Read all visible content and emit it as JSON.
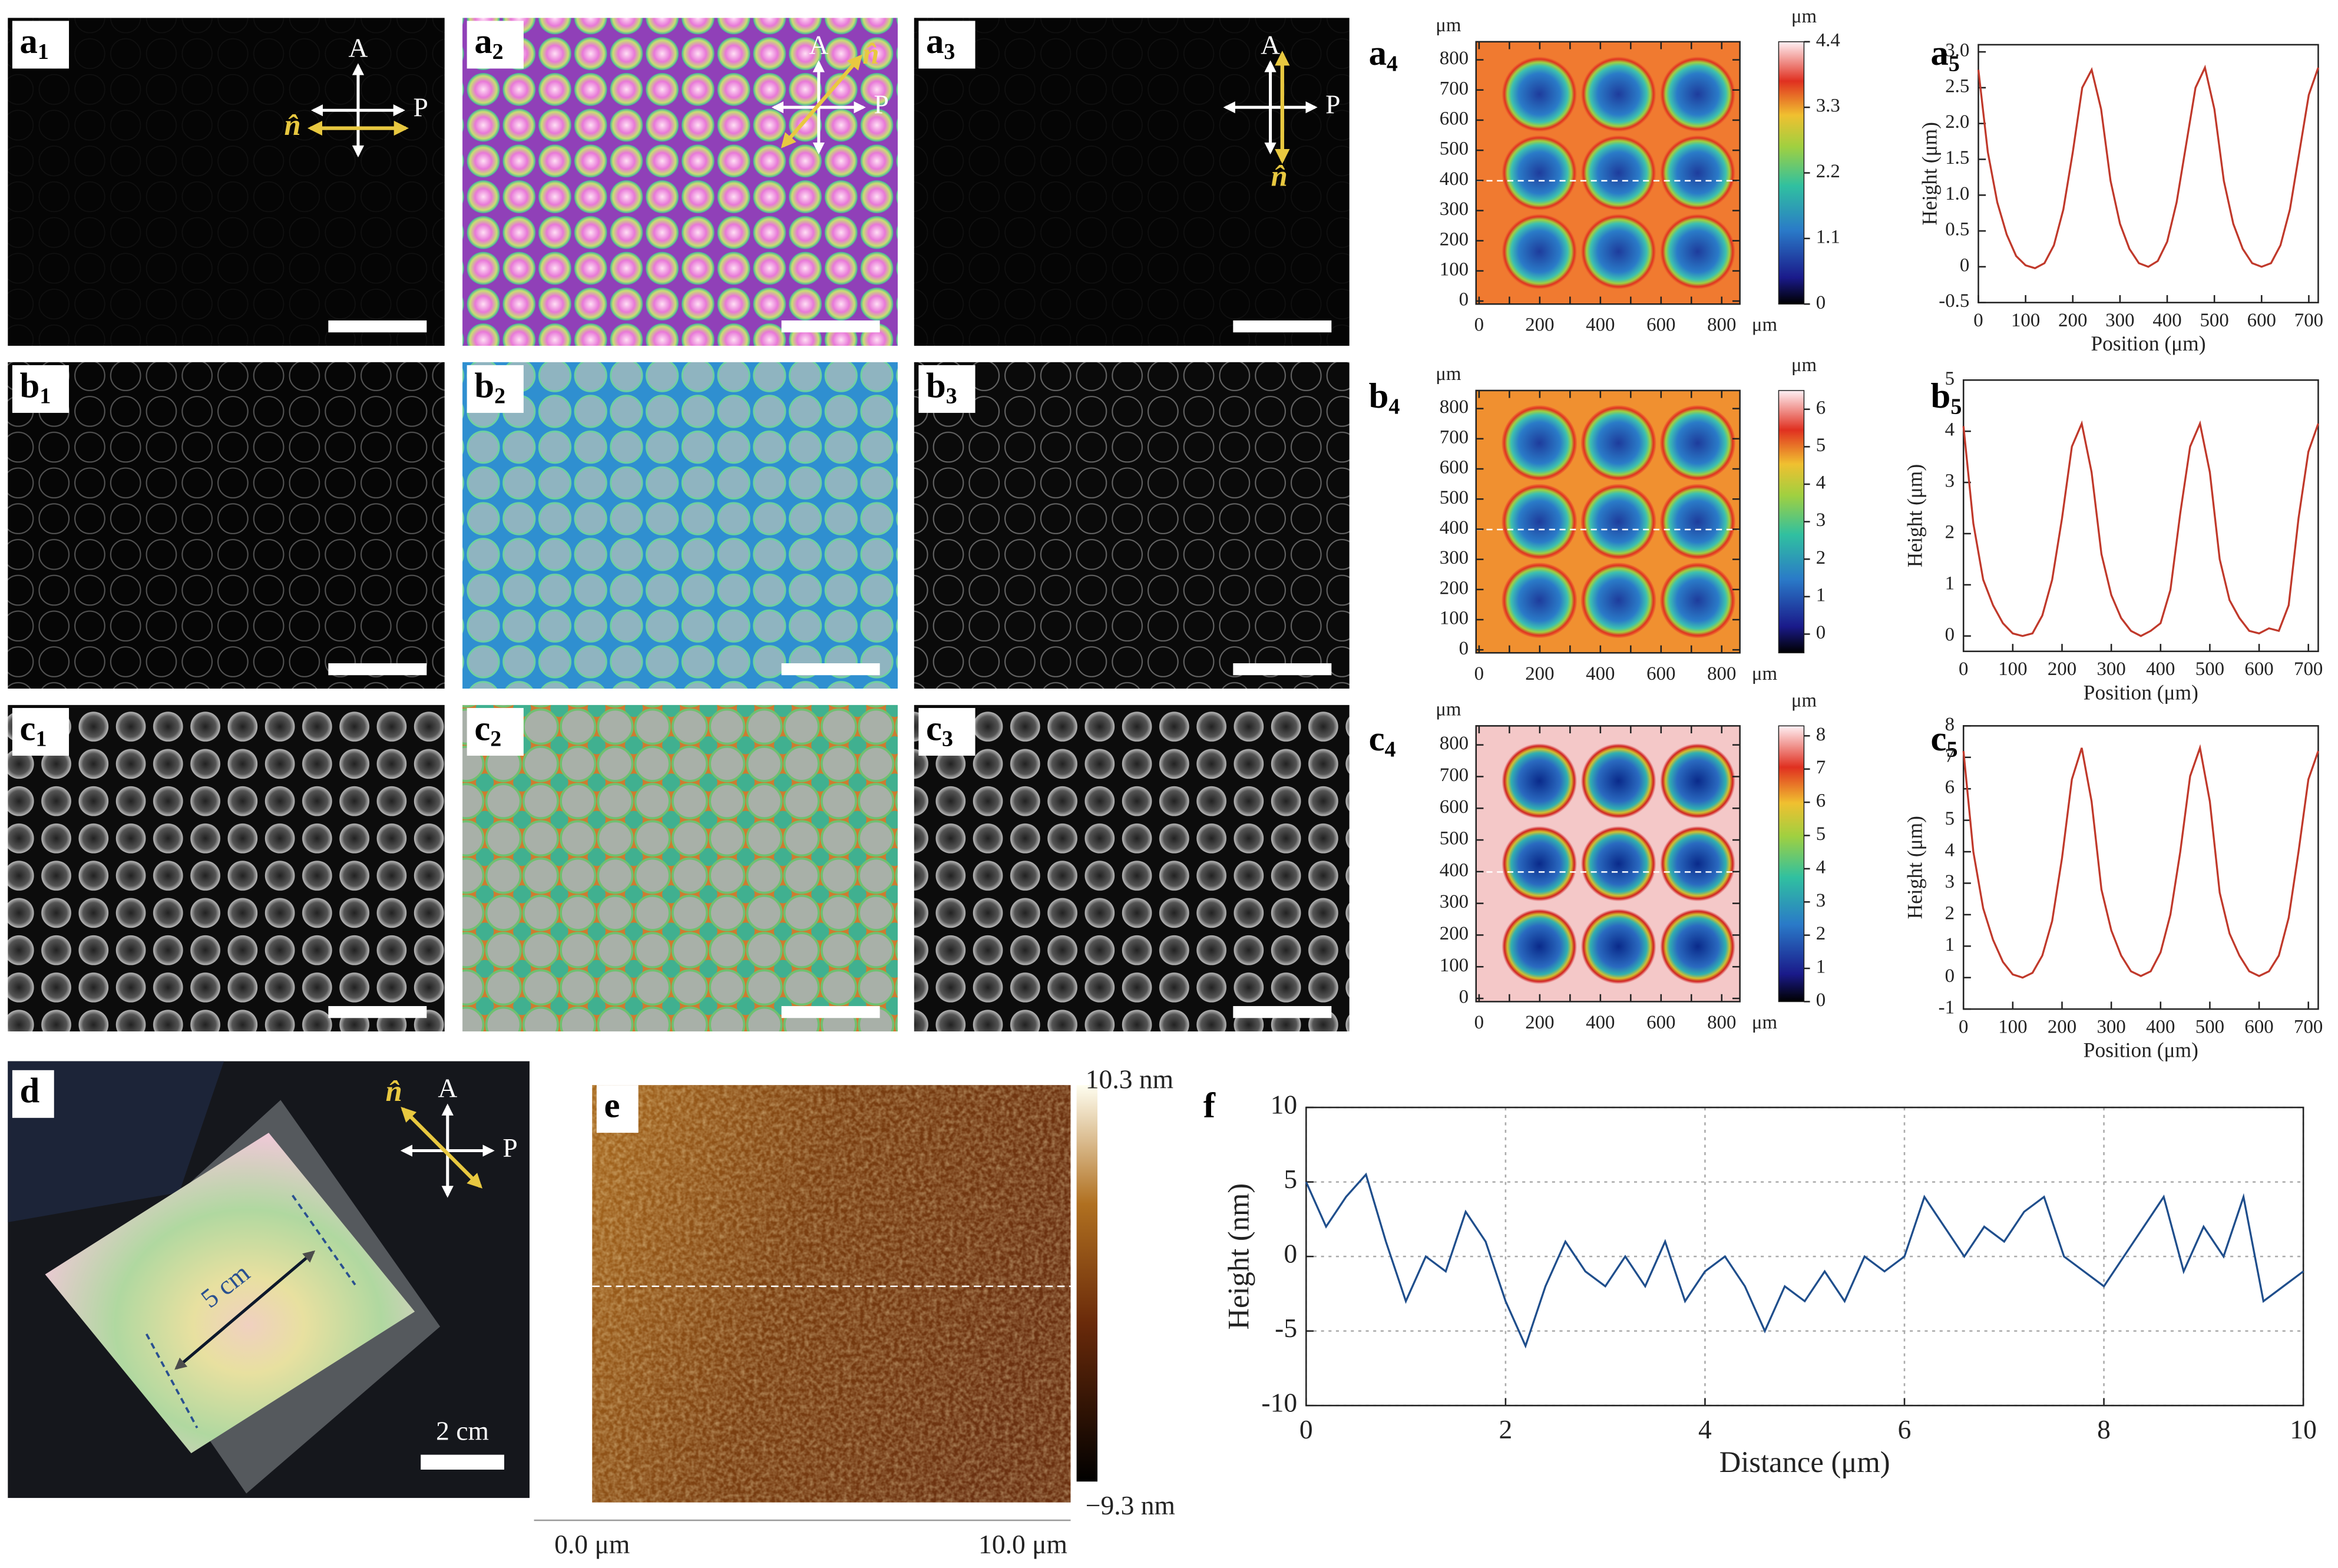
{
  "labels": [
    {
      "letter": "a",
      "sub": "1"
    },
    {
      "letter": "a",
      "sub": "2"
    },
    {
      "letter": "a",
      "sub": "3"
    },
    {
      "letter": "a",
      "sub": "4"
    },
    {
      "letter": "a",
      "sub": "5"
    },
    {
      "letter": "b",
      "sub": "1"
    },
    {
      "letter": "b",
      "sub": "2"
    },
    {
      "letter": "b",
      "sub": "3"
    },
    {
      "letter": "b",
      "sub": "4"
    },
    {
      "letter": "b",
      "sub": "5"
    },
    {
      "letter": "c",
      "sub": "1"
    },
    {
      "letter": "c",
      "sub": "2"
    },
    {
      "letter": "c",
      "sub": "3"
    },
    {
      "letter": "c",
      "sub": "4"
    },
    {
      "letter": "c",
      "sub": "5"
    },
    {
      "letter": "d"
    },
    {
      "letter": "e"
    },
    {
      "letter": "f"
    }
  ],
  "polarizer": {
    "analyzer": "A",
    "polarizer": "P",
    "director": "n̂"
  },
  "maps": [
    {
      "unit": "μm",
      "xlim": [
        -10,
        860
      ],
      "ylim": [
        -10,
        860
      ],
      "xticks": [
        0,
        100,
        200,
        300,
        400,
        500,
        600,
        700,
        800
      ],
      "yticks": [
        0,
        100,
        200,
        300,
        400,
        500,
        600,
        700,
        800
      ],
      "colorbar_lim": [
        0,
        4.4
      ],
      "colorbar_ticks": [
        0,
        1.1,
        2.2,
        3.3,
        4.4
      ]
    },
    {
      "unit": "μm",
      "xlim": [
        -10,
        860
      ],
      "ylim": [
        -10,
        860
      ],
      "xticks": [
        0,
        100,
        200,
        300,
        400,
        500,
        600,
        700,
        800
      ],
      "yticks": [
        0,
        100,
        200,
        300,
        400,
        500,
        600,
        700,
        800
      ],
      "colorbar_lim": [
        -0.5,
        6.5
      ],
      "colorbar_ticks": [
        0,
        1,
        2,
        3,
        4,
        5,
        6
      ]
    },
    {
      "unit": "μm",
      "xlim": [
        -10,
        860
      ],
      "ylim": [
        -10,
        860
      ],
      "xticks": [
        0,
        100,
        200,
        300,
        400,
        500,
        600,
        700,
        800
      ],
      "yticks": [
        0,
        100,
        200,
        300,
        400,
        500,
        600,
        700,
        800
      ],
      "colorbar_lim": [
        0,
        8.3
      ],
      "colorbar_ticks": [
        0,
        1,
        2,
        3,
        4,
        5,
        6,
        7,
        8
      ]
    }
  ],
  "photo": {
    "length": "5 cm",
    "scale": "2 cm"
  },
  "afm": {
    "max": "10.3 nm",
    "min": "−9.3 nm",
    "x_start": "0.0 μm",
    "x_end": "10.0 μm"
  },
  "chart_data": [
    {
      "type": "line",
      "xlabel": "Position (μm)",
      "ylabel": "Height (μm)",
      "xlim": [
        0,
        720
      ],
      "xticks": [
        0,
        100,
        200,
        300,
        400,
        500,
        600,
        700
      ],
      "ylim": [
        -0.5,
        3.1
      ],
      "yticks": [
        -0.5,
        0,
        0.5,
        {
          "value": 1,
          "label": "1.0"
        },
        1.5,
        {
          "value": 2,
          "label": "2.0"
        },
        2.5,
        {
          "value": 3,
          "label": "3.0"
        }
      ],
      "x": [
        0,
        20,
        40,
        60,
        80,
        100,
        120,
        140,
        160,
        180,
        200,
        220,
        240,
        260,
        280,
        300,
        320,
        340,
        360,
        380,
        400,
        420,
        440,
        460,
        480,
        500,
        520,
        540,
        560,
        580,
        600,
        620,
        640,
        660,
        680,
        700,
        720
      ],
      "series": [
        {
          "color": "#c0392b",
          "values": [
            2.75,
            1.6,
            0.9,
            0.45,
            0.15,
            0.02,
            -0.02,
            0.05,
            0.3,
            0.8,
            1.6,
            2.5,
            2.75,
            2.2,
            1.2,
            0.6,
            0.25,
            0.05,
            0,
            0.08,
            0.35,
            0.9,
            1.7,
            2.5,
            2.78,
            2.2,
            1.2,
            0.6,
            0.25,
            0.05,
            0,
            0.05,
            0.3,
            0.8,
            1.6,
            2.4,
            2.78
          ]
        }
      ]
    },
    {
      "type": "line",
      "xlabel": "Position (μm)",
      "ylabel": "Height (μm)",
      "xlim": [
        0,
        720
      ],
      "xticks": [
        0,
        100,
        200,
        300,
        400,
        500,
        600,
        700
      ],
      "ylim": [
        -0.3,
        5
      ],
      "yticks": [
        0,
        1,
        2,
        3,
        4,
        5
      ],
      "x": [
        0,
        20,
        40,
        60,
        80,
        100,
        120,
        140,
        160,
        180,
        200,
        220,
        240,
        260,
        280,
        300,
        320,
        340,
        360,
        380,
        400,
        420,
        440,
        460,
        480,
        500,
        520,
        540,
        560,
        580,
        600,
        620,
        640,
        660,
        680,
        700,
        720
      ],
      "series": [
        {
          "color": "#c0392b",
          "values": [
            4.1,
            2.2,
            1.1,
            0.6,
            0.25,
            0.05,
            0,
            0.05,
            0.4,
            1.1,
            2.3,
            3.7,
            4.15,
            3.2,
            1.6,
            0.8,
            0.35,
            0.1,
            0,
            0.1,
            0.25,
            0.9,
            2.4,
            3.7,
            4.15,
            3.2,
            1.5,
            0.7,
            0.35,
            0.1,
            0.05,
            0.15,
            0.1,
            0.6,
            2.3,
            3.6,
            4.15
          ]
        }
      ]
    },
    {
      "type": "line",
      "xlabel": "Position (μm)",
      "ylabel": "Height (μm)",
      "xlim": [
        0,
        720
      ],
      "xticks": [
        0,
        100,
        200,
        300,
        400,
        500,
        600,
        700
      ],
      "ylim": [
        -1,
        8
      ],
      "yticks": [
        -1,
        0,
        1,
        2,
        3,
        4,
        5,
        6,
        7,
        8
      ],
      "x": [
        0,
        20,
        40,
        60,
        80,
        100,
        120,
        140,
        160,
        180,
        200,
        220,
        240,
        260,
        280,
        300,
        320,
        340,
        360,
        380,
        400,
        420,
        440,
        460,
        480,
        500,
        520,
        540,
        560,
        580,
        600,
        620,
        640,
        660,
        680,
        700,
        720
      ],
      "series": [
        {
          "color": "#c0392b",
          "values": [
            7.2,
            4,
            2.2,
            1.2,
            0.5,
            0.1,
            0,
            0.15,
            0.7,
            1.8,
            3.8,
            6.3,
            7.3,
            5.6,
            2.8,
            1.5,
            0.7,
            0.2,
            0.05,
            0.2,
            0.8,
            2,
            4,
            6.4,
            7.3,
            5.6,
            2.7,
            1.4,
            0.7,
            0.2,
            0.05,
            0.2,
            0.7,
            1.9,
            4,
            6.3,
            7.2
          ]
        }
      ]
    },
    {
      "type": "line",
      "xlabel": "Distance (μm)",
      "ylabel": "Height (nm)",
      "xlim": [
        0,
        10
      ],
      "xticks": [
        0,
        2,
        4,
        6,
        8,
        10
      ],
      "ylim": [
        -10,
        10
      ],
      "yticks": [
        -10,
        -5,
        0,
        5,
        10
      ],
      "grid": true,
      "x": [
        0,
        0.2,
        0.4,
        0.6,
        0.8,
        1,
        1.2,
        1.4,
        1.6,
        1.8,
        2,
        2.2,
        2.4,
        2.6,
        2.8,
        3,
        3.2,
        3.4,
        3.6,
        3.8,
        4,
        4.2,
        4.4,
        4.6,
        4.8,
        5,
        5.2,
        5.4,
        5.6,
        5.8,
        6,
        6.2,
        6.4,
        6.6,
        6.8,
        7,
        7.2,
        7.4,
        7.6,
        7.8,
        8,
        8.2,
        8.4,
        8.6,
        8.8,
        9,
        9.2,
        9.4,
        9.6,
        9.8,
        10
      ],
      "series": [
        {
          "color": "#1f4e8c",
          "values": [
            5,
            2,
            4,
            5.5,
            1,
            -3,
            0,
            -1,
            3,
            1,
            -3,
            -6,
            -2,
            1,
            -1,
            -2,
            0,
            -2,
            1,
            -3,
            -1,
            0,
            -2,
            -5,
            -2,
            -3,
            -1,
            -3,
            0,
            -1,
            0,
            4,
            2,
            0,
            2,
            1,
            3,
            4,
            0,
            -1,
            -2,
            0,
            2,
            4,
            -1,
            2,
            0,
            4,
            -3,
            -2,
            -1
          ]
        }
      ]
    }
  ]
}
